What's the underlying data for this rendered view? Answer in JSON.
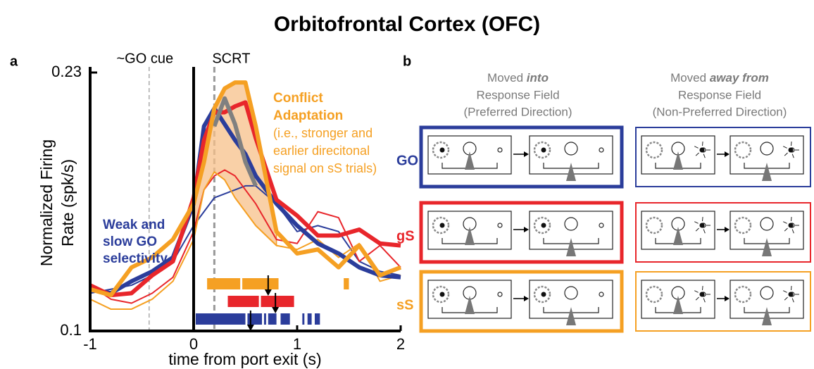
{
  "chart_data": {
    "type": "line",
    "title": "Orbitofrontal Cortex (OFC)",
    "panel_label": "a",
    "x_label": "time from port exit (s)",
    "y_label": [
      "Normalized Firing",
      "Rate (spk/s)"
    ],
    "xlim": [
      -1,
      2
    ],
    "xticks": [
      -1,
      0,
      1,
      2
    ],
    "ylim": [
      0.1,
      0.23
    ],
    "yticks": [
      0.1,
      0.23
    ],
    "x": [
      -1,
      -0.8,
      -0.6,
      -0.4,
      -0.2,
      0,
      0.1,
      0.2,
      0.3,
      0.4,
      0.5,
      0.6,
      0.8,
      1,
      1.2,
      1.4,
      1.6,
      1.8,
      2
    ],
    "series": [
      {
        "color": "#2b3d9b",
        "weight": "thin",
        "values": [
          0.119,
          0.121,
          0.123,
          0.128,
          0.135,
          0.153,
          0.16,
          0.167,
          0.169,
          0.171,
          0.173,
          0.173,
          0.164,
          0.15,
          0.153,
          0.15,
          0.135,
          0.13,
          0.128
        ]
      },
      {
        "color": "#e8262b",
        "weight": "thin",
        "values": [
          0.123,
          0.116,
          0.114,
          0.119,
          0.127,
          0.15,
          0.171,
          0.178,
          0.181,
          0.178,
          0.171,
          0.164,
          0.146,
          0.144,
          0.16,
          0.157,
          0.135,
          0.143,
          0.132
        ]
      },
      {
        "color": "#f5a023",
        "weight": "thin",
        "values": [
          0.116,
          0.111,
          0.111,
          0.116,
          0.125,
          0.146,
          0.171,
          0.18,
          0.176,
          0.167,
          0.16,
          0.153,
          0.143,
          0.141,
          0.146,
          0.137,
          0.144,
          0.125,
          0.128
        ]
      },
      {
        "color": "#2b3d9b",
        "weight": "thick",
        "values": [
          0.121,
          0.119,
          0.125,
          0.13,
          0.137,
          0.164,
          0.203,
          0.212,
          0.204,
          0.196,
          0.189,
          0.178,
          0.164,
          0.153,
          0.144,
          0.139,
          0.132,
          0.128,
          0.127
        ]
      },
      {
        "color": "#e8262b",
        "weight": "thick",
        "values": [
          0.123,
          0.118,
          0.119,
          0.128,
          0.135,
          0.167,
          0.196,
          0.21,
          0.21,
          0.213,
          0.215,
          0.197,
          0.166,
          0.158,
          0.148,
          0.148,
          0.151,
          0.144,
          0.143
        ]
      },
      {
        "color": "#808080",
        "weight": "thick",
        "values": [
          null,
          null,
          null,
          null,
          null,
          null,
          null,
          0.203,
          0.217,
          0.204,
          0.185,
          0.173,
          null,
          null,
          null,
          null,
          null,
          null,
          null
        ]
      },
      {
        "color": "#f5a023",
        "weight": "thick",
        "values": [
          0.121,
          0.118,
          0.132,
          0.137,
          0.146,
          0.164,
          0.185,
          0.212,
          0.222,
          0.225,
          0.225,
          0.203,
          0.15,
          0.139,
          0.141,
          0.132,
          0.143,
          0.128,
          0.132
        ]
      }
    ],
    "shade": {
      "upper": 6,
      "lower": 2,
      "x_range": [
        0,
        0.8
      ],
      "color": "#f7c08a"
    },
    "vlines": [
      {
        "x": -0.43,
        "label": "~GO cue"
      },
      {
        "x": 0.2,
        "label": "SCRT"
      }
    ],
    "sig_bars": [
      {
        "color": "#f5a023",
        "spans": [
          [
            0.13,
            0.45
          ],
          [
            0.47,
            0.82
          ],
          [
            1.45,
            1.5
          ]
        ],
        "arrow": 0.72
      },
      {
        "color": "#e8262b",
        "spans": [
          [
            0.33,
            0.63
          ],
          [
            0.65,
            0.97
          ]
        ],
        "arrow": 0.79
      },
      {
        "color": "#2b3d9b",
        "spans": [
          [
            0.02,
            0.5
          ],
          [
            0.52,
            0.66
          ],
          [
            0.68,
            0.7
          ],
          [
            0.72,
            0.8
          ],
          [
            0.84,
            0.93
          ],
          [
            1.05,
            1.07
          ],
          [
            1.1,
            1.14
          ],
          [
            1.17,
            1.22
          ]
        ],
        "arrow": 0.55
      }
    ],
    "annotations": [
      {
        "lines": [
          "Conflict",
          "Adaptation"
        ],
        "color": "#f5a023",
        "bold": true
      },
      {
        "lines": [
          "(i.e., stronger and",
          "earlier direcitonal",
          "signal on sS trials)"
        ],
        "color": "#f5a023",
        "bold": false
      },
      {
        "lines": [
          "Weak and",
          "slow GO",
          "selectivity"
        ],
        "color": "#2b3d9b",
        "bold": true
      }
    ]
  },
  "diagram": {
    "panel_label": "b",
    "columns": [
      {
        "lead": "Moved",
        "emph": "into",
        "lines": [
          "Response Field",
          "(Preferred Direction)"
        ]
      },
      {
        "lead": "Moved",
        "emph": "away from",
        "lines": [
          "Response Field",
          "(Non-Preferred Direction)"
        ]
      }
    ],
    "rows": [
      {
        "label": "GO",
        "color": "#2b3d9b"
      },
      {
        "label": "gS",
        "color": "#e8262b"
      },
      {
        "label": "sS",
        "color": "#f5a023"
      }
    ]
  }
}
